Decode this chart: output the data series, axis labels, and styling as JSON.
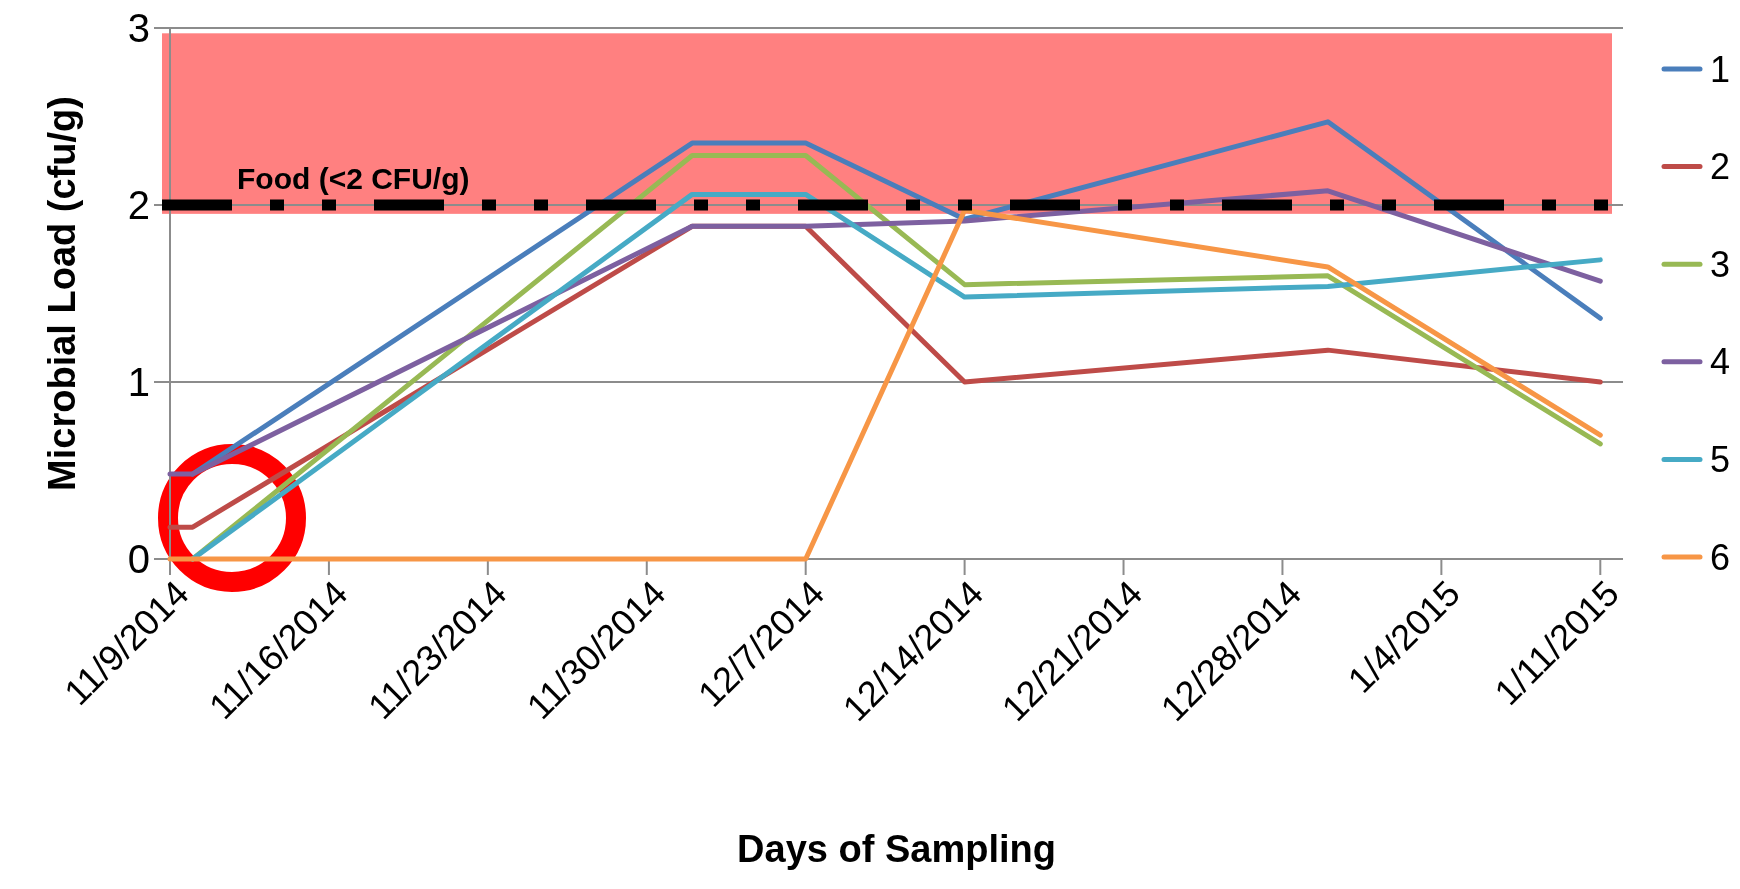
{
  "chart_data": {
    "type": "line",
    "xlabel": "Days of Sampling",
    "ylabel": "Microbial Load (cfu/g)",
    "x": [
      "2014-11-09",
      "2014-11-10",
      "2014-12-02",
      "2014-12-07",
      "2014-12-14",
      "2014-12-30",
      "2015-01-11"
    ],
    "series": [
      {
        "name": "1",
        "color": "#4a7ebb",
        "values": [
          null,
          0.48,
          2.35,
          2.35,
          1.92,
          2.47,
          1.36
        ]
      },
      {
        "name": "2",
        "color": "#be4b48",
        "values": [
          0.18,
          0.18,
          1.88,
          1.88,
          1.0,
          1.18,
          1.0
        ]
      },
      {
        "name": "3",
        "color": "#98b954",
        "values": [
          null,
          0,
          2.28,
          2.28,
          1.55,
          1.6,
          0.65
        ]
      },
      {
        "name": "4",
        "color": "#7d60a0",
        "values": [
          0.48,
          0.48,
          1.88,
          1.88,
          1.91,
          2.08,
          1.57
        ]
      },
      {
        "name": "5",
        "color": "#46aac5",
        "values": [
          null,
          0,
          2.06,
          2.06,
          1.48,
          1.54,
          1.69
        ]
      },
      {
        "name": "6",
        "color": "#f79646",
        "values": [
          0,
          0,
          0,
          0,
          1.97,
          1.65,
          0.7
        ]
      }
    ],
    "xlim": [
      "2014-11-09",
      "2015-01-12"
    ],
    "xticks": [
      {
        "value": "2014-11-09",
        "label": "11/9/2014"
      },
      {
        "value": "2014-11-16",
        "label": "11/16/2014"
      },
      {
        "value": "2014-11-23",
        "label": "11/23/2014"
      },
      {
        "value": "2014-11-30",
        "label": "11/30/2014"
      },
      {
        "value": "2014-12-07",
        "label": "12/7/2014"
      },
      {
        "value": "2014-12-14",
        "label": "12/14/2014"
      },
      {
        "value": "2014-12-21",
        "label": "12/21/2014"
      },
      {
        "value": "2014-12-28",
        "label": "12/28/2014"
      },
      {
        "value": "2015-01-04",
        "label": "1/4/2015"
      },
      {
        "value": "2015-01-11",
        "label": "1/11/2015"
      }
    ],
    "ylim": [
      0,
      3
    ],
    "yticks": [
      0,
      1,
      2,
      3
    ],
    "grid": "y",
    "legend": "right",
    "line_style": "solid",
    "bands": [
      {
        "axis": "y",
        "from": 1.95,
        "to": 2.97,
        "color": "#ff8080"
      }
    ],
    "ref_lines": [
      {
        "axis": "y",
        "value": 2,
        "label": "Food (<2 CFU/g)",
        "color": "#000000",
        "line_style": "dashed"
      }
    ]
  }
}
